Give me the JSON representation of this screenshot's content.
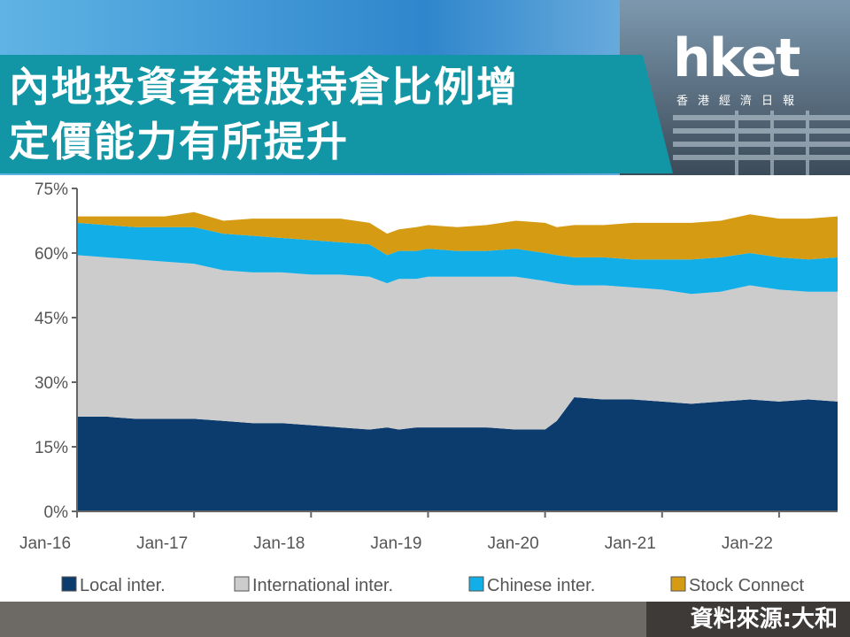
{
  "header": {
    "title_line1": "內地投資者港股持倉比例增",
    "title_line2": "定價能力有所提升"
  },
  "logo": {
    "name": "hket",
    "subtitle": "香港經濟日報"
  },
  "source": "資料來源:大和",
  "colors": {
    "teal_banner": "#1296a6",
    "local": "#0c3b6e",
    "international": "#cccccc",
    "chinese": "#12aee8",
    "stock_connect": "#d59b12",
    "axis": "#666666"
  },
  "chart_data": {
    "type": "area",
    "stacked": true,
    "title": "",
    "xlabel": "",
    "ylabel": "",
    "ylim": [
      0,
      75
    ],
    "yticks": [
      0,
      15,
      30,
      45,
      60,
      75
    ],
    "ytick_labels": [
      "0%",
      "15%",
      "30%",
      "45%",
      "60%",
      "75%"
    ],
    "xlim": [
      0,
      6.5
    ],
    "xticks": [
      0,
      1,
      2,
      3,
      4,
      5,
      6
    ],
    "xtick_labels": [
      "Jan-16",
      "Jan-17",
      "Jan-18",
      "Jan-19",
      "Jan-20",
      "Jan-21",
      "Jan-22"
    ],
    "grid": false,
    "legend_position": "bottom",
    "x": [
      0,
      0.25,
      0.5,
      0.75,
      1.0,
      1.25,
      1.5,
      1.75,
      2.0,
      2.25,
      2.5,
      2.65,
      2.75,
      2.9,
      3.0,
      3.25,
      3.5,
      3.75,
      4.0,
      4.1,
      4.25,
      4.5,
      4.75,
      5.0,
      5.25,
      5.5,
      5.75,
      6.0,
      6.25,
      6.5
    ],
    "series": [
      {
        "name": "Local inter.",
        "values": [
          22,
          22,
          21.5,
          21.5,
          21.5,
          21,
          20.5,
          20.5,
          20,
          19.5,
          19,
          19.5,
          19,
          19.5,
          19.5,
          19.5,
          19.5,
          19,
          19,
          21,
          26.5,
          26,
          26,
          25.5,
          25,
          25.5,
          26,
          25.5,
          26,
          25.5
        ]
      },
      {
        "name": "International inter.",
        "values": [
          37.5,
          37,
          37,
          36.5,
          36,
          35,
          35,
          35,
          35,
          35.5,
          35.5,
          33.5,
          35,
          34.5,
          35,
          35,
          35,
          35.5,
          34.5,
          32,
          26,
          26.5,
          26,
          26,
          25.5,
          25.5,
          26.5,
          26,
          25,
          25.5
        ]
      },
      {
        "name": "Chinese inter.",
        "values": [
          7.5,
          7.5,
          7.5,
          8,
          8.5,
          8.5,
          8.5,
          8,
          8,
          7.5,
          7.5,
          6.5,
          6.5,
          6.5,
          6.5,
          6,
          6,
          6.5,
          6.5,
          6.5,
          6.5,
          6.5,
          6.5,
          7,
          8,
          8,
          7.5,
          7.5,
          7.5,
          8
        ]
      },
      {
        "name": "Stock Connect",
        "values": [
          1.5,
          2,
          2.5,
          2.5,
          3.5,
          3,
          4,
          4.5,
          5,
          5.5,
          5,
          5,
          5,
          5.5,
          5.5,
          5.5,
          6,
          6.5,
          7,
          6.5,
          7.5,
          7.5,
          8.5,
          8.5,
          8.5,
          8.5,
          9,
          9,
          9.5,
          9.5
        ]
      }
    ]
  }
}
